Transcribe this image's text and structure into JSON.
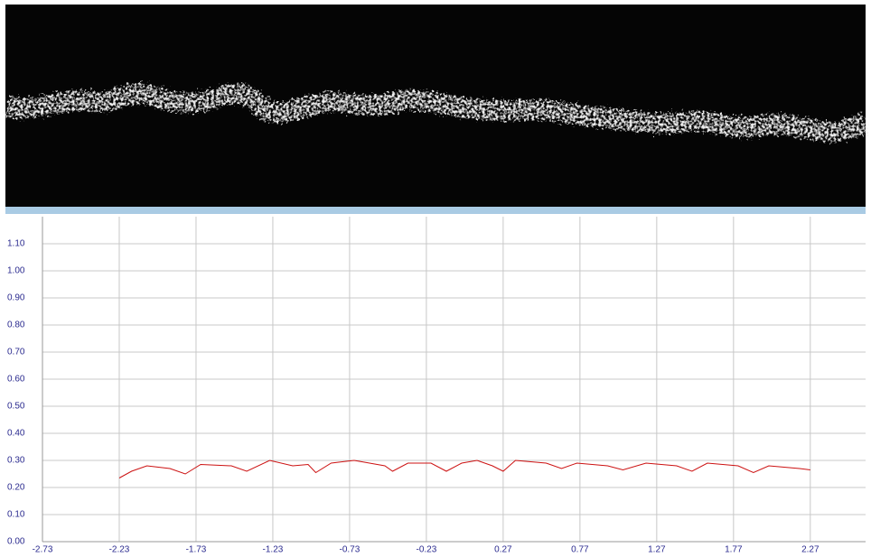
{
  "chart_data": {
    "type": "line",
    "x": [
      -2.23,
      -2.15,
      -2.05,
      -1.9,
      -1.8,
      -1.7,
      -1.5,
      -1.4,
      -1.25,
      -1.1,
      -1.0,
      -0.95,
      -0.85,
      -0.7,
      -0.5,
      -0.45,
      -0.35,
      -0.2,
      -0.1,
      0.0,
      0.1,
      0.2,
      0.27,
      0.35,
      0.55,
      0.65,
      0.75,
      0.95,
      1.05,
      1.2,
      1.4,
      1.5,
      1.6,
      1.8,
      1.9,
      2.0,
      2.2,
      2.27
    ],
    "series": [
      {
        "color": "#cc1111",
        "values": [
          0.235,
          0.26,
          0.28,
          0.27,
          0.25,
          0.285,
          0.28,
          0.26,
          0.3,
          0.28,
          0.285,
          0.255,
          0.29,
          0.3,
          0.28,
          0.26,
          0.29,
          0.29,
          0.26,
          0.29,
          0.3,
          0.28,
          0.26,
          0.3,
          0.29,
          0.27,
          0.29,
          0.28,
          0.265,
          0.29,
          0.28,
          0.26,
          0.29,
          0.28,
          0.255,
          0.28,
          0.27,
          0.265
        ]
      }
    ],
    "xlim": [
      -2.73,
      2.63
    ],
    "xticks": [
      -2.73,
      -2.23,
      -1.73,
      -1.23,
      -0.73,
      -0.23,
      0.27,
      0.77,
      1.27,
      1.77,
      2.27
    ],
    "ylim": [
      0,
      1.2
    ],
    "yticks": [
      {
        "value": 0,
        "label": "0.00"
      },
      {
        "value": 0.1,
        "label": "0.10"
      },
      {
        "value": 0.2,
        "label": "0.20"
      },
      {
        "value": 0.3,
        "label": "0.30"
      },
      {
        "value": 0.4,
        "label": "0.40"
      },
      {
        "value": 0.5,
        "label": "0.50"
      },
      {
        "value": 0.6,
        "label": "0.60"
      },
      {
        "value": 0.7,
        "label": "0.70"
      },
      {
        "value": 0.8,
        "label": "0.80"
      },
      {
        "value": 0.9,
        "label": "0.90"
      },
      {
        "value": 1.0,
        "label": "1.00"
      },
      {
        "value": 1.1,
        "label": "1.10"
      }
    ],
    "grid": true
  }
}
